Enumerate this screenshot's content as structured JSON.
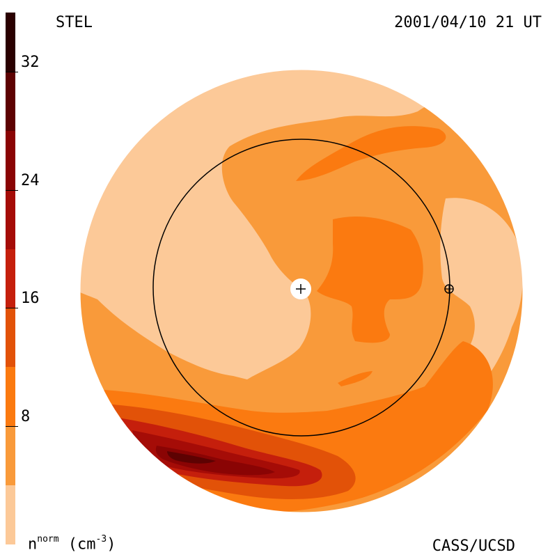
{
  "header": {
    "instrument": "STEL",
    "timestamp": "2001/04/10 21 UT"
  },
  "footer": {
    "credit": "CASS/UCSD",
    "unit_symbol": "n",
    "unit_superscript": "norm",
    "unit_text": " (cm",
    "unit_exponent": "-3",
    "unit_close": ")"
  },
  "colorbar": {
    "range": [
      0,
      36
    ],
    "ticks": [
      "8",
      "16",
      "24",
      "32"
    ],
    "tick_values": [
      8,
      16,
      24,
      32
    ],
    "levels": [
      {
        "min": 0,
        "max": 4,
        "color": "#fcc998"
      },
      {
        "min": 4,
        "max": 8,
        "color": "#f99a3a"
      },
      {
        "min": 8,
        "max": 12,
        "color": "#fb7a10"
      },
      {
        "min": 12,
        "max": 16,
        "color": "#e25208"
      },
      {
        "min": 16,
        "max": 20,
        "color": "#c51f0c"
      },
      {
        "min": 20,
        "max": 24,
        "color": "#a50c07"
      },
      {
        "min": 24,
        "max": 28,
        "color": "#8a0404"
      },
      {
        "min": 28,
        "max": 32,
        "color": "#5d0202"
      },
      {
        "min": 32,
        "max": 36,
        "color": "#2a0000"
      }
    ]
  },
  "map": {
    "markers": [
      "sun-center-marker",
      "earth-marker"
    ],
    "reference_circle": "earth-orbit-circle"
  }
}
